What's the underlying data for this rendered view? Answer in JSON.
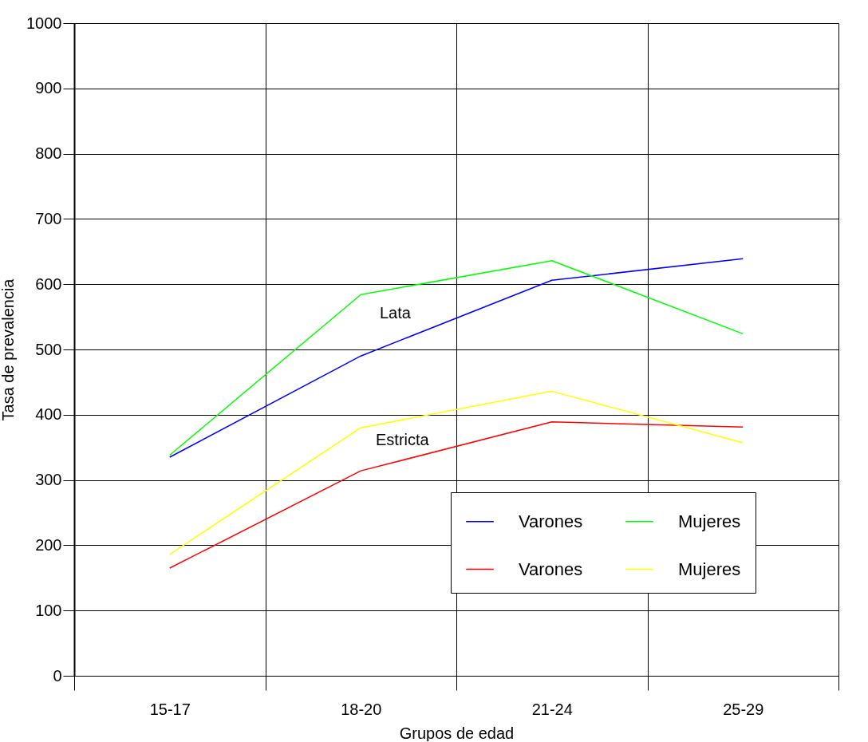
{
  "chart_data": {
    "type": "line",
    "xlabel": "Grupos de edad",
    "ylabel": "Tasa de prevalencia",
    "categories": [
      "15-17",
      "18-20",
      "21-24",
      "25-29"
    ],
    "series": [
      {
        "name": "Varones",
        "color": "#0000ff",
        "values": [
          335,
          490,
          606,
          639
        ]
      },
      {
        "name": "Varones",
        "color": "#ff0000",
        "values": [
          165,
          314,
          389,
          381
        ]
      },
      {
        "name": "Mujeres",
        "color": "#00ff00",
        "values": [
          338,
          584,
          636,
          524
        ]
      },
      {
        "name": "Mujeres",
        "color": "#ffff00",
        "values": [
          186,
          380,
          436,
          357
        ]
      }
    ],
    "ylim": [
      0,
      1000
    ],
    "yticks": [
      0,
      100,
      200,
      300,
      400,
      500,
      600,
      700,
      800,
      900,
      1000
    ],
    "grid": true,
    "legend": "bottom right",
    "line_style": "solid",
    "annotations": [
      "Lata",
      "Estricta"
    ]
  }
}
